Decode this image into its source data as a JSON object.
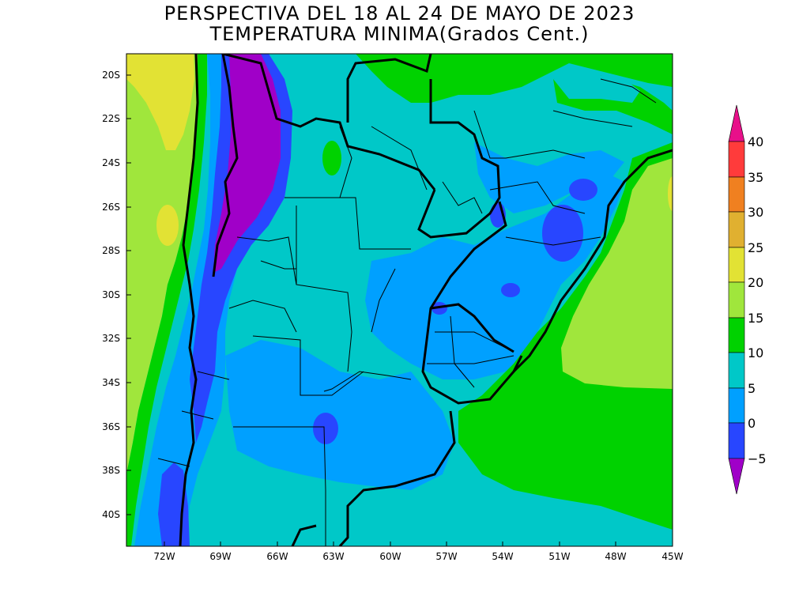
{
  "title": {
    "line1": "PERSPECTIVA DEL 18 AL 24 DE MAYO DE 2023",
    "line2": "TEMPERATURA MINIMA(Grados Cent.)"
  },
  "axes": {
    "lat_ticks": [
      "20S",
      "22S",
      "24S",
      "26S",
      "28S",
      "30S",
      "32S",
      "34S",
      "36S",
      "38S",
      "40S"
    ],
    "lon_ticks": [
      "72W",
      "69W",
      "66W",
      "63W",
      "60W",
      "57W",
      "54W",
      "51W",
      "48W",
      "45W"
    ]
  },
  "colorbar": {
    "labels": [
      "40",
      "35",
      "30",
      "25",
      "20",
      "15",
      "10",
      "5",
      "0",
      "−5"
    ],
    "colors": {
      "above_40": "#e8108a",
      "35_40": "#ff3b3b",
      "30_35": "#f08020",
      "25_30": "#e0b030",
      "20_25": "#e2e234",
      "15_20": "#a0e63c",
      "10_15": "#00d200",
      "5_10": "#00c8c8",
      "0_5": "#00a0ff",
      "m5_0": "#2846ff",
      "below_m5": "#a000c8"
    }
  }
}
